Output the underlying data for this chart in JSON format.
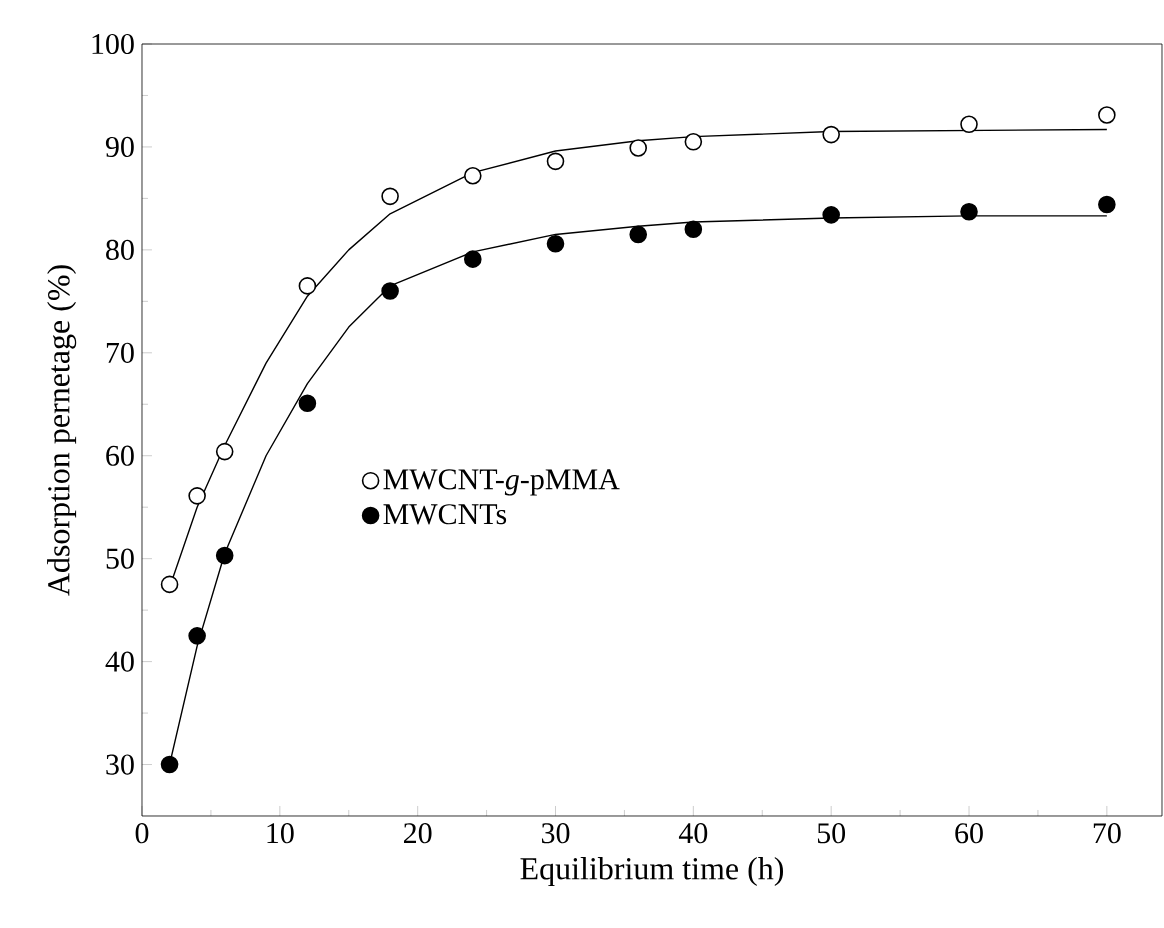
{
  "chart_data": {
    "type": "scatter",
    "xlabel": "Equilibrium time (h)",
    "ylabel": "Adsorption pernetage (%)",
    "xlim": [
      0,
      74
    ],
    "ylim": [
      25,
      100
    ],
    "xticks": [
      0,
      10,
      20,
      30,
      40,
      50,
      60,
      70
    ],
    "yticks": [
      30,
      40,
      50,
      60,
      70,
      80,
      90,
      100
    ],
    "legend": "left",
    "grid": false,
    "x": [
      2,
      4,
      6,
      12,
      18,
      24,
      30,
      36,
      40,
      50,
      60,
      70
    ],
    "series": [
      {
        "name": "MWCNT-*g*-pMMA",
        "color": "#ffffff",
        "marker": "circle",
        "values": [
          47.5,
          56.1,
          60.4,
          76.5,
          85.2,
          87.2,
          88.6,
          89.9,
          90.5,
          91.2,
          92.2,
          93.1
        ]
      },
      {
        "name": "MWCNTs",
        "color": "#000000",
        "marker": "circle",
        "values": [
          30,
          42.5,
          50.3,
          65.1,
          76.0,
          79.1,
          80.6,
          81.5,
          82.0,
          83.4,
          83.7,
          84.4
        ]
      },
      {
        "type": "line",
        "marker": "none",
        "color": "#000000",
        "x": [
          2,
          4,
          6,
          9,
          12,
          15,
          18,
          24,
          30,
          36,
          40,
          50,
          60,
          70
        ],
        "values": [
          47.2,
          55,
          61,
          69,
          75.5,
          80,
          83.5,
          87.5,
          89.6,
          90.6,
          91,
          91.5,
          91.6,
          91.7
        ]
      },
      {
        "type": "line",
        "marker": "none",
        "color": "#000000",
        "x": [
          2,
          4,
          6,
          9,
          12,
          15,
          18,
          24,
          30,
          36,
          40,
          50,
          60,
          70
        ],
        "values": [
          30,
          41.5,
          50.5,
          60,
          67,
          72.5,
          76.5,
          79.8,
          81.5,
          82.3,
          82.7,
          83.1,
          83.3,
          83.3
        ]
      }
    ]
  }
}
